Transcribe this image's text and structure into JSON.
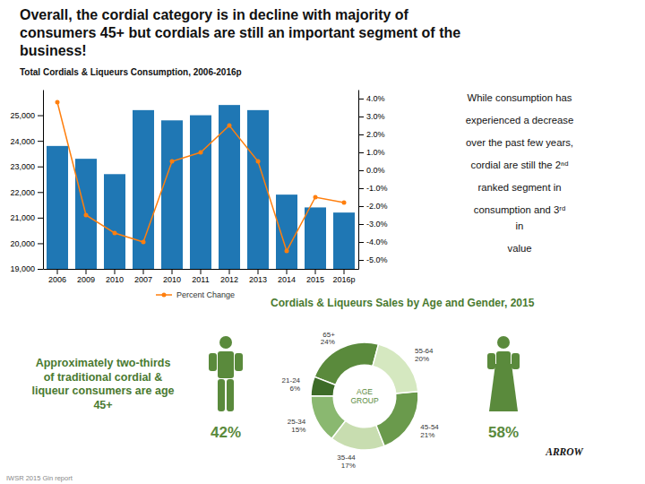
{
  "chart_data": [
    {
      "type": "bar",
      "title": "Overall, the cordial category is in decline with majority of\nconsumers 45+ but cordials are still an important segment of the\nbusiness!",
      "subtitle": "Total Cordials & Liqueurs Consumption, 2006-2016p",
      "categories": [
        "2006",
        "2009",
        "2010",
        "2007",
        "2010",
        "2011",
        "2012",
        "2013",
        "2014",
        "2015",
        "2016p"
      ],
      "series": [
        {
          "type": "bar",
          "values": [
            23800,
            23300,
            22700,
            25200,
            24800,
            25000,
            25400,
            25200,
            21900,
            21400,
            21200
          ]
        },
        {
          "name": "Percent Change",
          "type": "line",
          "axis": "y2",
          "marker": "circle",
          "values": [
            3.8,
            -2.5,
            -3.5,
            -4.0,
            0.5,
            1.0,
            2.5,
            0.5,
            -4.5,
            -1.5,
            -1.8
          ]
        }
      ],
      "ylim": [
        19000,
        26000
      ],
      "yticks": [
        {
          "value": 19000,
          "label": "19,000"
        },
        {
          "value": 20000,
          "label": "20,000"
        },
        {
          "value": 21000,
          "label": "21,000"
        },
        {
          "value": 22000,
          "label": "22,000"
        },
        {
          "value": 23000,
          "label": "23,000"
        },
        {
          "value": 24000,
          "label": "24,000"
        },
        {
          "value": 25000,
          "label": "25,000"
        }
      ],
      "y2lim": [
        -5.5,
        4.5
      ],
      "y2ticks": [
        {
          "value": -5.0,
          "label": "-5.0%"
        },
        {
          "value": -4.0,
          "label": "-4.0%"
        },
        {
          "value": -3.0,
          "label": "-3.0%"
        },
        {
          "value": -2.0,
          "label": "-2.0%"
        },
        {
          "value": -1.0,
          "label": "-1.0%"
        },
        {
          "value": 0.0,
          "label": "0.0%"
        },
        {
          "value": 1.0,
          "label": "1.0%"
        },
        {
          "value": 2.0,
          "label": "2.0%"
        },
        {
          "value": 3.0,
          "label": "3.0%"
        },
        {
          "value": 4.0,
          "label": "4.0%"
        }
      ],
      "legend": "bottom",
      "grid": false,
      "annotations": [
        "While consumption has",
        "experienced a decrease",
        "over the past few years,",
        "cordial are still the 2ⁿᵈ",
        "ranked segment in",
        "consumption  and 3ʳᵈ",
        " in",
        "value",
        "ARROW",
        "IWSR 2015 Gin report"
      ]
    },
    {
      "type": "pie",
      "title": "Cordials & Liqueurs Sales by Age and Gender, 2015",
      "categories": [
        "65+",
        "21-24",
        "25-34",
        "35-44",
        "45-54",
        "55-64"
      ],
      "values": [
        24,
        6,
        15,
        17,
        21,
        20
      ],
      "value_labels": [
        "24%",
        "6%",
        "15%",
        "17%",
        "21%",
        "20%"
      ],
      "colors": [
        "#5a8a3c",
        "#3d6b28",
        "#8ab870",
        "#c8ddb0",
        "#6a9a4c",
        "#d5e8c0"
      ],
      "data_labels": true,
      "annotations": [
        "AGE\nGROUP",
        "Approximately two-thirds\nof traditional cordial &\nliqueur consumers are age\n45+"
      ]
    },
    {
      "type": "pictogram",
      "values": [
        42,
        58
      ],
      "value_labels": [
        "42%",
        "58%"
      ],
      "color": "#5a8a3c",
      "data_labels": true
    }
  ]
}
